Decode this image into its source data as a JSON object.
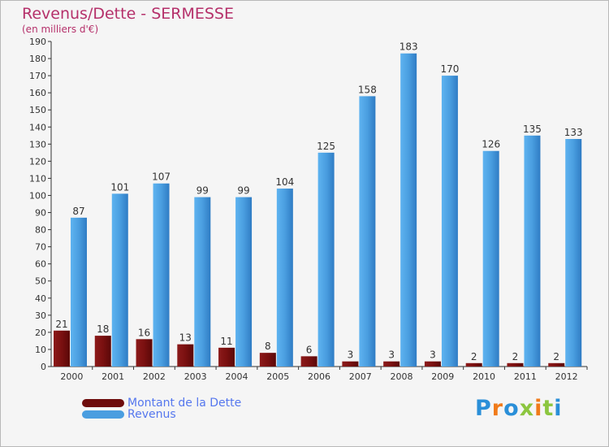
{
  "chart_data": {
    "type": "bar",
    "title": "Revenus/Dette - SERMESSE",
    "subtitle": "(en milliers d'€)",
    "xlabel": "",
    "ylabel": "",
    "ylim": [
      0,
      190
    ],
    "ytick_step": 10,
    "grid": false,
    "legend_position": "bottom-left",
    "categories": [
      "2000",
      "2001",
      "2002",
      "2003",
      "2004",
      "2005",
      "2006",
      "2007",
      "2008",
      "2009",
      "2010",
      "2011",
      "2012"
    ],
    "series": [
      {
        "name": "Montant de la Dette",
        "color": "#7a1010",
        "values": [
          21,
          18,
          16,
          13,
          11,
          8,
          6,
          3,
          3,
          3,
          2,
          2,
          2
        ]
      },
      {
        "name": "Revenus",
        "color": "#4a9ee0",
        "values": [
          87,
          101,
          107,
          99,
          99,
          104,
          125,
          158,
          183,
          170,
          126,
          135,
          133
        ]
      }
    ]
  },
  "logo": {
    "letters": [
      "P",
      "r",
      "o",
      "x",
      "i",
      "t",
      "i"
    ],
    "colors": [
      "#2a8fd8",
      "#f07b1a",
      "#2a8fd8",
      "#8cc63f",
      "#f07b1a",
      "#8cc63f",
      "#2a8fd8"
    ]
  }
}
